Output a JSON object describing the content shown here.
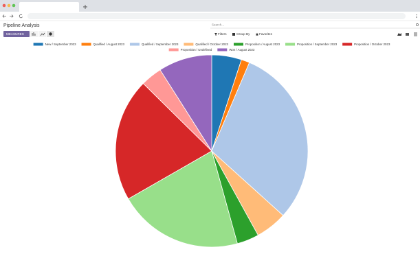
{
  "app": {
    "page_title": "Pipeline Analysis",
    "search_placeholder": "Search...",
    "measures_button": "MEASURES",
    "filters": "Filters",
    "group_by": "Group By",
    "favorites": "Favorites"
  },
  "chart_data": {
    "type": "pie",
    "categories": [
      "New / September 2023",
      "Qualified / August 2023",
      "Qualified / September 2023",
      "Qualified / October 2023",
      "Proposition / August 2023",
      "Proposition / September 2023",
      "Proposition / October 2023",
      "Proposition / Undefined",
      "Won / August 2023"
    ],
    "values": [
      5.0,
      1.4,
      30.3,
      5.3,
      3.7,
      21.0,
      20.7,
      3.6,
      9.0
    ],
    "colors": [
      "#1f77b4",
      "#ff7f0e",
      "#aec7e8",
      "#ffbb78",
      "#2ca02c",
      "#98df8a",
      "#d62728",
      "#ff9896",
      "#9467bd"
    ]
  }
}
